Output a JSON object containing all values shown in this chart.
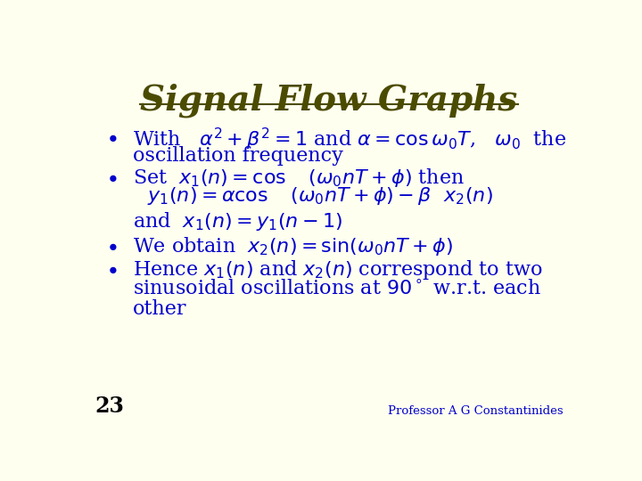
{
  "title": "Signal Flow Graphs",
  "title_color": "#4B4B00",
  "title_underline_color": "#4B4B00",
  "bg_color": "#FFFFF0",
  "text_color": "#0000CC",
  "slide_number": "23",
  "footer": "Professor A G Constantinides",
  "title_fontsize": 28,
  "body_fontsize": 16
}
